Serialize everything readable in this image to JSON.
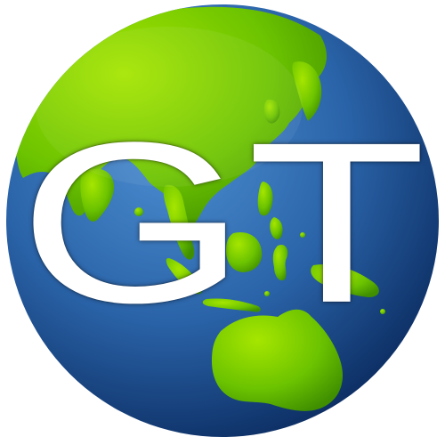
{
  "logo": {
    "letters": "GT"
  },
  "colors": {
    "ocean_light": "#3f7fc2",
    "ocean_dark": "#0a2f6a",
    "land_light": "#8fd400",
    "land_dark": "#4ea300",
    "text": "#ffffff"
  },
  "icons": {
    "globe": "globe-icon"
  }
}
